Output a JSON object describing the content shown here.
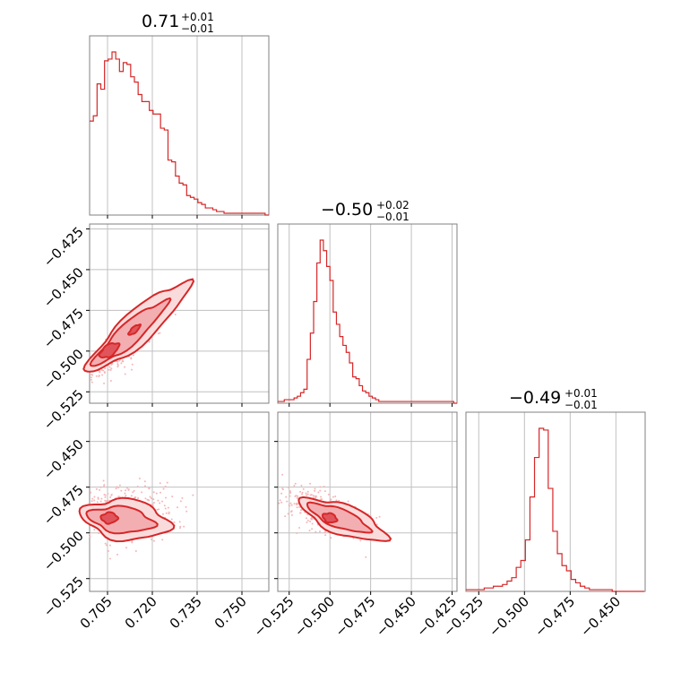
{
  "colors": {
    "series": "#d62728",
    "grid": "#c0c0c0",
    "frame": "#808080",
    "fill_light": "#fadbdc"
  },
  "titles": [
    {
      "main": "0.71",
      "sup": "+0.01",
      "sub": "−0.01"
    },
    {
      "main": "−0.50",
      "sup": "+0.02",
      "sub": "−0.01"
    },
    {
      "main": "−0.49",
      "sup": "+0.01",
      "sub": "−0.01"
    }
  ],
  "chart_data": {
    "type": "corner",
    "parameters": 3,
    "axes": {
      "p1": {
        "range": [
          0.699,
          0.759
        ],
        "ticks": [
          0.705,
          0.72,
          0.735,
          0.75
        ],
        "tick_labels": [
          "0.705",
          "0.720",
          "0.735",
          "0.750"
        ]
      },
      "p2": {
        "range": [
          -0.532,
          -0.422
        ],
        "ticks": [
          -0.525,
          -0.5,
          -0.475,
          -0.45,
          -0.425
        ],
        "tick_labels": [
          "−0.525",
          "−0.500",
          "−0.475",
          "−0.450",
          "−0.425"
        ]
      },
      "p3": {
        "range": [
          -0.532,
          -0.434
        ],
        "ticks": [
          -0.525,
          -0.5,
          -0.475,
          -0.45
        ],
        "tick_labels": [
          "−0.525",
          "−0.500",
          "−0.475",
          "−0.450"
        ]
      }
    },
    "histograms": {
      "p1": {
        "bin_edges_start": 0.699,
        "bin_width": 0.00125,
        "counts": [
          53,
          56,
          74,
          71,
          87,
          88,
          92,
          88,
          81,
          86,
          85,
          78,
          75,
          68,
          64,
          64,
          59,
          57,
          57,
          49,
          48,
          31,
          30,
          22,
          18,
          17,
          11,
          10,
          9,
          7,
          6,
          4,
          4,
          3,
          2,
          2,
          1,
          1,
          1,
          1,
          1,
          1,
          1,
          1,
          1,
          1,
          1,
          0
        ]
      },
      "p2": {
        "bin_edges_start": -0.532,
        "bin_width": 0.002,
        "counts": [
          1,
          1,
          2,
          2,
          2,
          3,
          4,
          6,
          8,
          25,
          40,
          58,
          80,
          93,
          87,
          78,
          70,
          52,
          45,
          38,
          33,
          29,
          23,
          15,
          14,
          10,
          7,
          6,
          4,
          3,
          2,
          1,
          1,
          1,
          1,
          1,
          1,
          1,
          1,
          1,
          1,
          1,
          1,
          1,
          1,
          1,
          1,
          1,
          1,
          1,
          1,
          1,
          1,
          1,
          0
        ]
      },
      "p3": {
        "bin_edges_start": -0.532,
        "bin_width": 0.0025,
        "counts": [
          1,
          1,
          1,
          1,
          2,
          2,
          3,
          3,
          4,
          6,
          8,
          14,
          18,
          30,
          55,
          78,
          95,
          94,
          60,
          35,
          22,
          15,
          12,
          7,
          5,
          3,
          2,
          1,
          1,
          1,
          1,
          1,
          0,
          0,
          0,
          0,
          0,
          0,
          0
        ]
      }
    },
    "contour_levels": [
      "outer",
      "middle",
      "inner"
    ],
    "grid": true
  }
}
